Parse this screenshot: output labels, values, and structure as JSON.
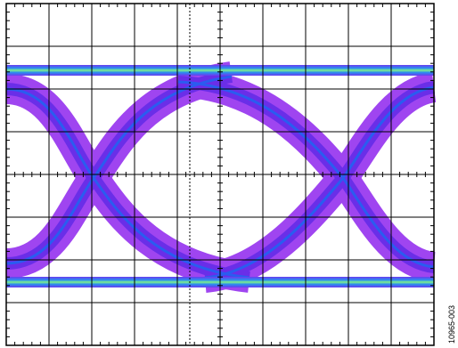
{
  "figure_id": "10965-003"
}
